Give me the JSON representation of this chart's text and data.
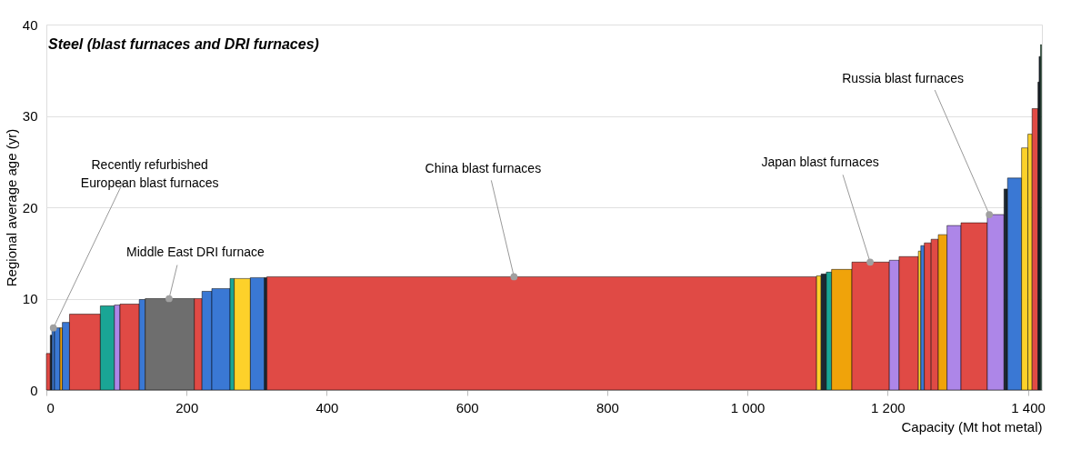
{
  "chart_data": {
    "type": "histogram",
    "title": "Steel (blast furnaces and DRI furnaces)",
    "xlabel": "Capacity (Mt hot metal)",
    "ylabel": "Regional average age (yr)",
    "bins": [
      0,
      5.6,
      8,
      11.6,
      19.5,
      22.8,
      33,
      77,
      97,
      105,
      132.5,
      141,
      211,
      222,
      236,
      262,
      268,
      291,
      311,
      314.6,
      1098.6,
      1105.1,
      1112.5,
      1120,
      1149,
      1202.4,
      1216.3,
      1243.8,
      1247.3,
      1252.3,
      1262,
      1272.2,
      1284.7,
      1304.6,
      1342.1,
      1366,
      1371,
      1391,
      1400,
      1406,
      1414.4,
      1416,
      1418,
      1419.4
    ],
    "values": [
      4.0,
      6.0,
      6.7,
      6.8,
      6.8,
      7.4,
      8.3,
      9.2,
      9.3,
      9.4,
      9.9,
      10.0,
      10.0,
      10.8,
      11.1,
      12.2,
      12.2,
      12.3,
      12.3,
      12.4,
      12.5,
      12.7,
      12.9,
      13.2,
      14.0,
      14.2,
      14.6,
      15.2,
      15.8,
      16.1,
      16.5,
      17.0,
      18.0,
      18.3,
      19.2,
      22.0,
      23.2,
      26.5,
      28.0,
      30.8,
      33.7,
      36.5,
      37.8
    ],
    "colors": [
      "#e04a45",
      "#1c2833",
      "#3a78d4",
      "#3a78d4",
      "#f0a30a",
      "#3a78d4",
      "#e04a45",
      "#1aa595",
      "#ad86e8",
      "#e04a45",
      "#3a78d4",
      "#6e6e6e",
      "#e04a45",
      "#3a78d4",
      "#3a78d4",
      "#1aa595",
      "#fdd12a",
      "#3a78d4",
      "#1c2833",
      "#e04a45",
      "#fdd12a",
      "#1c2833",
      "#1aa595",
      "#f0a30a",
      "#e04a45",
      "#ad86e8",
      "#e04a45",
      "#fdd12a",
      "#3a78d4",
      "#e04a45",
      "#e04a45",
      "#f0a30a",
      "#ad86e8",
      "#e04a45",
      "#ad86e8",
      "#1c2833",
      "#3a78d4",
      "#fdd12a",
      "#fdd12a",
      "#e04a45",
      "#1c2833",
      "#1c2833",
      "#2e7d4f"
    ],
    "xlim": [
      0,
      1420
    ],
    "xticks": [
      0,
      200,
      400,
      600,
      800,
      {
        "value": 1000,
        "label": "1 000"
      },
      {
        "value": 1200,
        "label": "1 200"
      },
      {
        "value": 1400,
        "label": "1 400"
      }
    ],
    "ylim": [
      0,
      40
    ],
    "yticks": [
      0,
      10,
      20,
      30,
      40
    ],
    "grid": "y",
    "annotations": [
      {
        "text": "Recently refurbished\nEuropean blast furnaces",
        "x": 10,
        "y": 6.8
      },
      {
        "text": "Middle East DRI furnace",
        "x": 175,
        "y": 10.0
      },
      {
        "text": "China blast furnaces",
        "x": 667,
        "y": 12.4
      },
      {
        "text": "Japan blast furnaces",
        "x": 1175,
        "y": 14.0
      },
      {
        "text": "Russia blast furnaces",
        "x": 1345,
        "y": 19.2
      }
    ]
  }
}
